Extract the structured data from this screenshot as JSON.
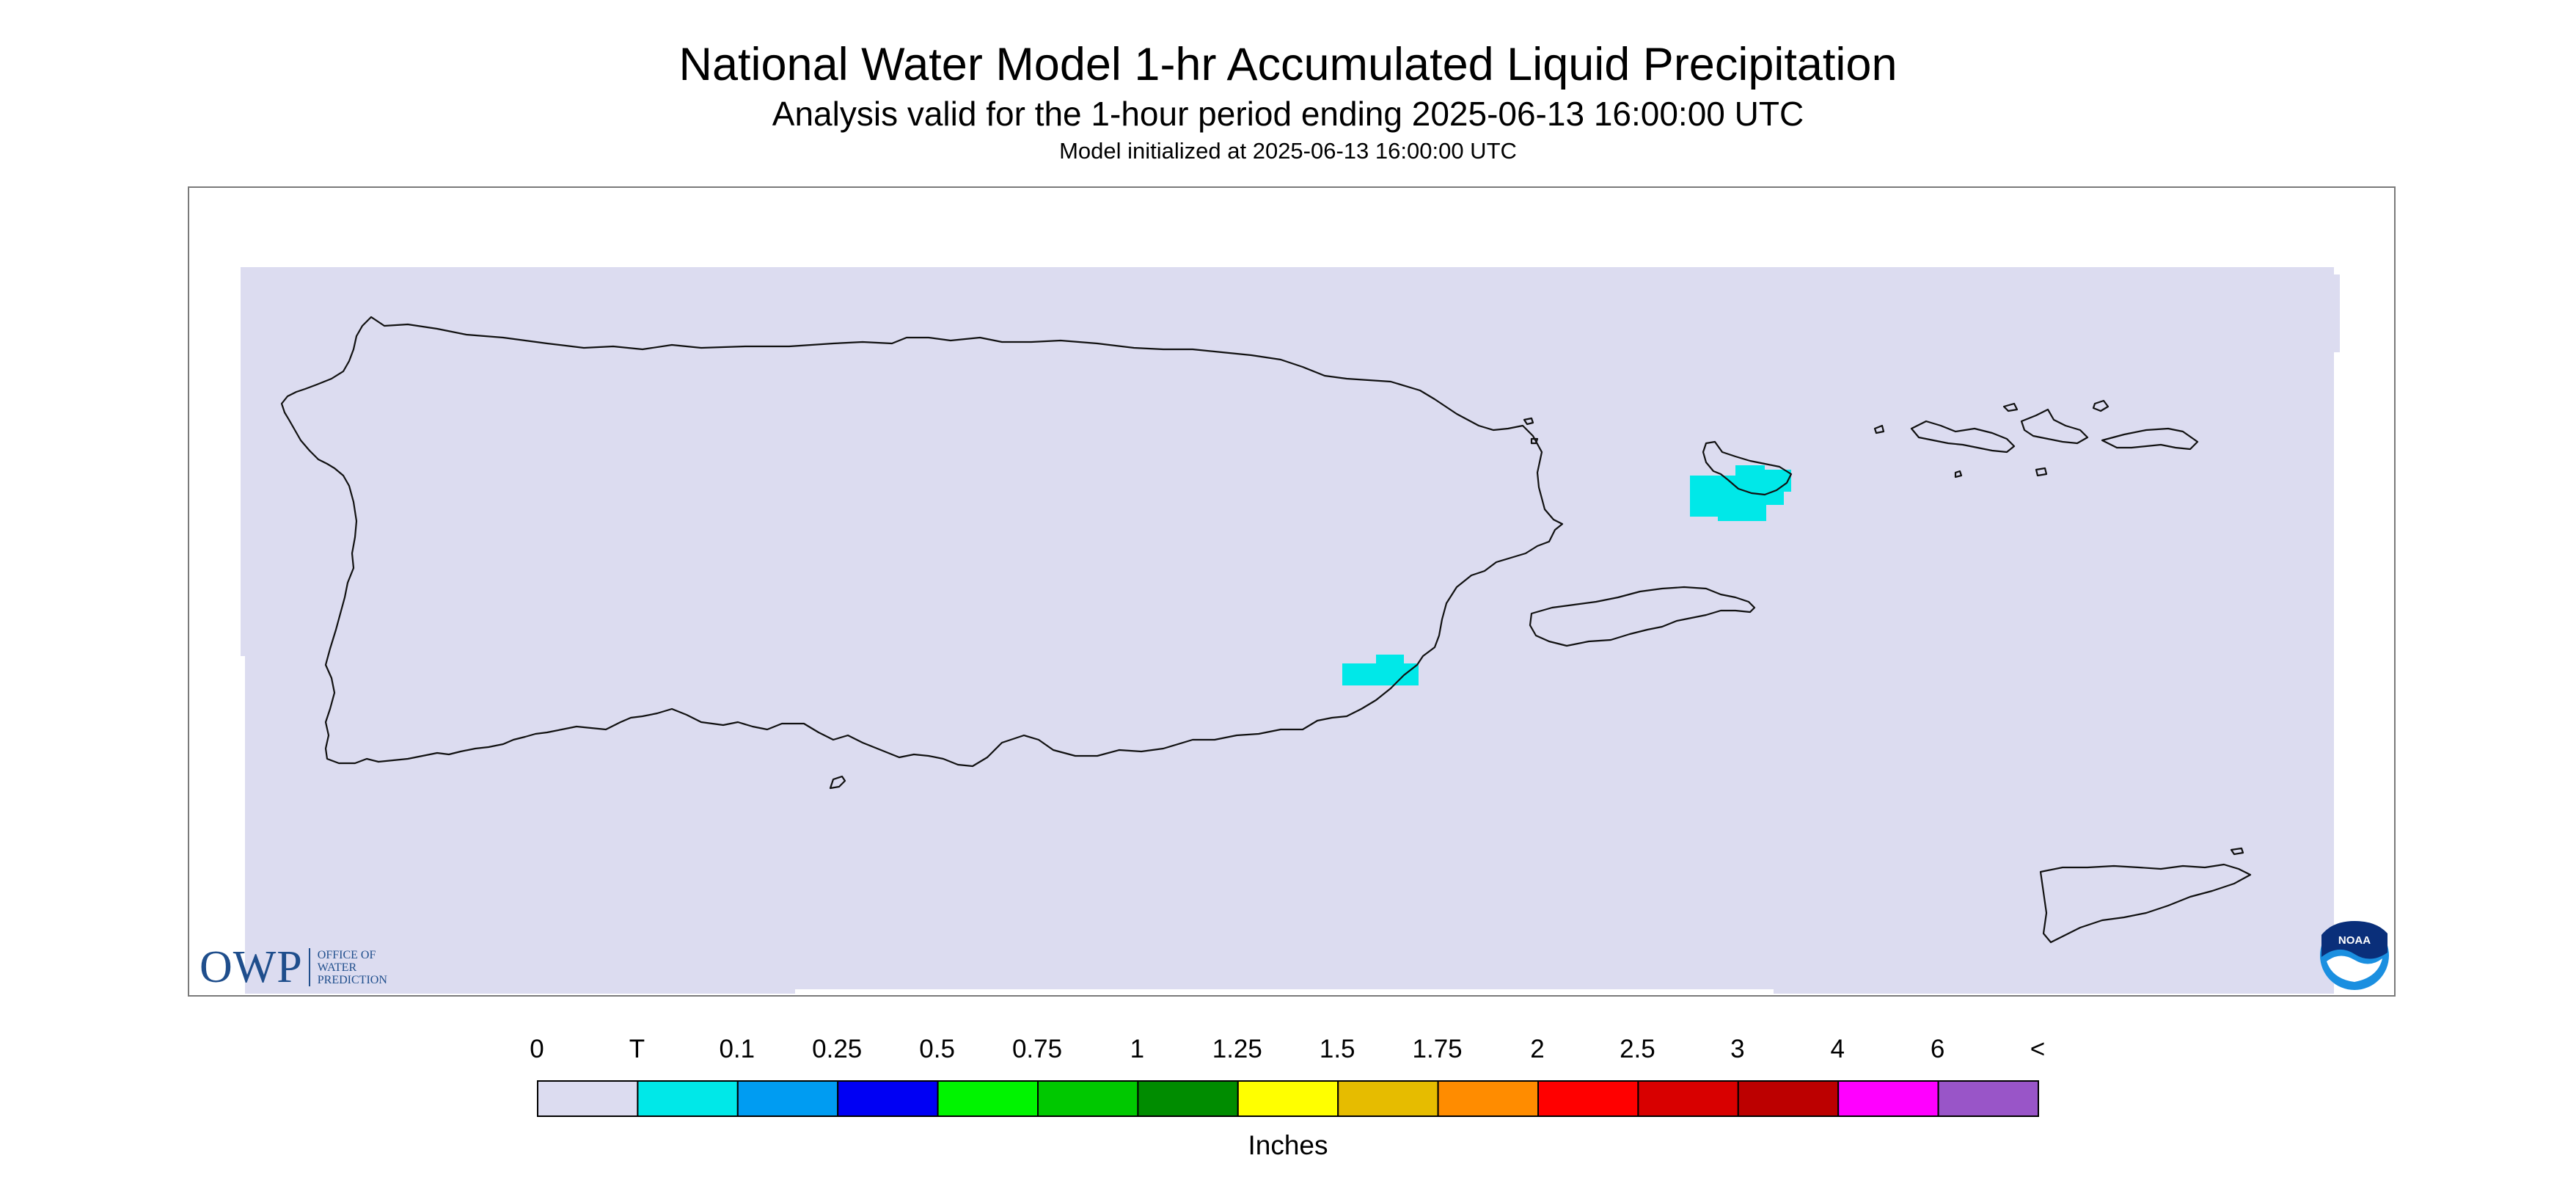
{
  "title": "National Water Model 1-hr Accumulated Liquid Precipitation",
  "subtitle": "Analysis valid for the 1-hour period ending 2025-06-13 16:00:00 UTC",
  "init_line": "Model initialized at 2025-06-13 16:00:00 UTC",
  "legend": {
    "units": "Inches",
    "labels": [
      "0",
      "T",
      "0.1",
      "0.25",
      "0.5",
      "0.75",
      "1",
      "1.25",
      "1.5",
      "1.75",
      "2",
      "2.5",
      "3",
      "4",
      "6",
      "<"
    ],
    "colors": [
      "#dcdcf0",
      "#00e8e8",
      "#009cf2",
      "#0000f4",
      "#00f400",
      "#00c800",
      "#008c00",
      "#ffff00",
      "#e6bc00",
      "#ff8c00",
      "#ff0000",
      "#d80000",
      "#bc0000",
      "#ff00ff",
      "#9955c8"
    ]
  },
  "map": {
    "background_color": "#dcdcf0",
    "precip_color": "#00e8e8"
  },
  "logos": {
    "owp": {
      "big": "OWP",
      "lines": [
        "OFFICE OF",
        "WATER",
        "PREDICTION"
      ]
    },
    "noaa": {
      "text": "NOAA"
    }
  }
}
